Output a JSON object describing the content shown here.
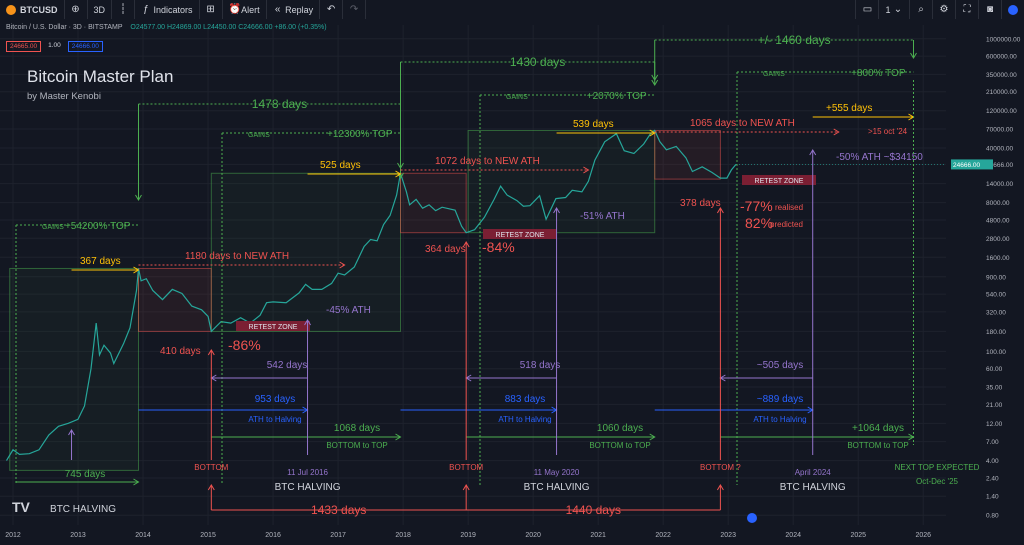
{
  "toolbar": {
    "symbol": "BTCUSD",
    "add_icon": "plus-circle-icon",
    "interval": "3D",
    "indicators_label": "Indicators",
    "alert_label": "Alert",
    "replay_label": "Replay",
    "layout_count": "1"
  },
  "legend": {
    "name": "Bitcoin / U.S. Dollar · 3D · BITSTAMP",
    "ohlc": "O24577.00 H24869.00 L24450.00 C24666.00 +86.00 (+0.35%)",
    "bid": "24665.00",
    "spread": "1.00",
    "ask": "24666.00"
  },
  "overlay": {
    "title": "Bitcoin Master Plan",
    "subtitle": "by Master Kenobi"
  },
  "colors": {
    "background": "#131722",
    "green": "#4caf50",
    "red": "#ef5350",
    "purple": "#9575cd",
    "blue": "#2962ff",
    "yellow": "#ffc107",
    "label_bg": "#7b1f33"
  },
  "chart_data": {
    "type": "line",
    "symbol": "BTCUSD",
    "scale": "log",
    "x_ticks": [
      "2012",
      "2013",
      "2014",
      "2015",
      "2016",
      "2017",
      "2018",
      "2019",
      "2020",
      "2021",
      "2022",
      "2023",
      "2024",
      "2025",
      "2026"
    ],
    "y_ticks": [
      "1000000.00",
      "600000.00",
      "350000.00",
      "210000.00",
      "120000.00",
      "70000.00",
      "40000.00",
      "24666.00",
      "14000.00",
      "8000.00",
      "4800.00",
      "2800.00",
      "1600.00",
      "900.00",
      "540.00",
      "320.00",
      "180.00",
      "100.00",
      "60.00",
      "35.00",
      "21.00",
      "12.00",
      "7.00",
      "4.00",
      "2.40",
      "1.40",
      "0.80"
    ],
    "price_label": "24666.00",
    "ylim": [
      0.6,
      1500000
    ],
    "xlim": [
      2011.8,
      2026.35
    ],
    "series": [
      {
        "values": [
          [
            2011.9,
            4
          ],
          [
            2012.0,
            5.5
          ],
          [
            2012.1,
            4.8
          ],
          [
            2012.25,
            4.9
          ],
          [
            2012.4,
            5.5
          ],
          [
            2012.55,
            8.5
          ],
          [
            2012.7,
            11
          ],
          [
            2012.85,
            12
          ],
          [
            2013.0,
            13.5
          ],
          [
            2013.1,
            20
          ],
          [
            2013.2,
            60
          ],
          [
            2013.28,
            230
          ],
          [
            2013.33,
            90
          ],
          [
            2013.4,
            120
          ],
          [
            2013.5,
            95
          ],
          [
            2013.55,
            70
          ],
          [
            2013.7,
            125
          ],
          [
            2013.8,
            200
          ],
          [
            2013.9,
            600
          ],
          [
            2013.93,
            1150
          ],
          [
            2013.97,
            800
          ],
          [
            2014.05,
            850
          ],
          [
            2014.15,
            600
          ],
          [
            2014.3,
            460
          ],
          [
            2014.45,
            620
          ],
          [
            2014.6,
            550
          ],
          [
            2014.75,
            380
          ],
          [
            2014.9,
            340
          ],
          [
            2015.0,
            280
          ],
          [
            2015.05,
            180
          ],
          [
            2015.2,
            240
          ],
          [
            2015.35,
            230
          ],
          [
            2015.5,
            270
          ],
          [
            2015.65,
            230
          ],
          [
            2015.8,
            290
          ],
          [
            2015.9,
            420
          ],
          [
            2016.0,
            430
          ],
          [
            2016.2,
            420
          ],
          [
            2016.4,
            560
          ],
          [
            2016.5,
            720
          ],
          [
            2016.6,
            620
          ],
          [
            2016.75,
            620
          ],
          [
            2016.9,
            740
          ],
          [
            2017.0,
            1000
          ],
          [
            2017.1,
            950
          ],
          [
            2017.25,
            1200
          ],
          [
            2017.4,
            2200
          ],
          [
            2017.5,
            2700
          ],
          [
            2017.6,
            2600
          ],
          [
            2017.7,
            4200
          ],
          [
            2017.8,
            5500
          ],
          [
            2017.9,
            10000
          ],
          [
            2017.96,
            19000
          ],
          [
            2018.05,
            11000
          ],
          [
            2018.1,
            7500
          ],
          [
            2018.2,
            8800
          ],
          [
            2018.3,
            6800
          ],
          [
            2018.4,
            7500
          ],
          [
            2018.5,
            6300
          ],
          [
            2018.6,
            7000
          ],
          [
            2018.8,
            6400
          ],
          [
            2018.9,
            4000
          ],
          [
            2018.97,
            3300
          ],
          [
            2019.1,
            3600
          ],
          [
            2019.25,
            5200
          ],
          [
            2019.4,
            8800
          ],
          [
            2019.5,
            13000
          ],
          [
            2019.6,
            10000
          ],
          [
            2019.75,
            8500
          ],
          [
            2019.85,
            7200
          ],
          [
            2019.95,
            7300
          ],
          [
            2020.1,
            9800
          ],
          [
            2020.2,
            4900
          ],
          [
            2020.35,
            9000
          ],
          [
            2020.5,
            9300
          ],
          [
            2020.6,
            11500
          ],
          [
            2020.75,
            11000
          ],
          [
            2020.85,
            15000
          ],
          [
            2020.95,
            28000
          ],
          [
            2021.1,
            48000
          ],
          [
            2021.28,
            61000
          ],
          [
            2021.4,
            37000
          ],
          [
            2021.55,
            34000
          ],
          [
            2021.7,
            45000
          ],
          [
            2021.8,
            60000
          ],
          [
            2021.87,
            67000
          ],
          [
            2021.95,
            48000
          ],
          [
            2022.05,
            38000
          ],
          [
            2022.2,
            42000
          ],
          [
            2022.35,
            30000
          ],
          [
            2022.45,
            20000
          ],
          [
            2022.6,
            23000
          ],
          [
            2022.75,
            19500
          ],
          [
            2022.88,
            16500
          ],
          [
            2022.98,
            16500
          ],
          [
            2023.05,
            21000
          ],
          [
            2023.12,
            24666
          ]
        ]
      }
    ],
    "annotations": {
      "peak_gains": [
        {
          "label": "GAINS",
          "value": "+54200% TOP"
        },
        {
          "label": "GAINS",
          "value": "+12300% TOP"
        },
        {
          "label": "GAINS",
          "value": "+2070% TOP"
        },
        {
          "label": "GAINS",
          "value": "+800% TOP"
        }
      ],
      "cycle_lengths": [
        "1478 days",
        "1430 days",
        "+/- 1460 days"
      ],
      "to_top": [
        "367 days",
        "525 days",
        "539 days",
        "+555 days"
      ],
      "to_new_ath": [
        "1180 days to NEW ATH",
        "1072 days to NEW ATH",
        "1065 days to NEW ATH"
      ],
      "ath_target": ">15 oct '24",
      "to_bottom": [
        "410 days",
        "364 days",
        "378 days"
      ],
      "drawdowns": [
        "-86%",
        "-84%",
        "-77%",
        "82%"
      ],
      "drawdown_notes": [
        "realised",
        "predicted"
      ],
      "retest": "RETEST ZONE",
      "halving_drop": [
        "-45% ATH",
        "-51% ATH",
        "-50% ATH ~$34150"
      ],
      "bottom_to_halving": [
        "542 days",
        "518 days",
        "~505 days"
      ],
      "ath_to_halving_days": [
        "953 days",
        "883 days",
        "~889 days"
      ],
      "ath_to_halving": "ATH to Halving",
      "bottom_to_top_days": [
        "1068 days",
        "1060 days",
        "+1064 days"
      ],
      "bottom_to_top": "BOTTOM to TOP",
      "first_halving_days": "745 days",
      "bottom": "BOTTOM",
      "bottom_next": "BOTTOM ?",
      "halving": "BTC HALVING",
      "halving_dates": [
        "11 Jul 2016",
        "11 May 2020",
        "April 2024"
      ],
      "bottom_spans": [
        "1433 days",
        "1440 days"
      ],
      "next_top": [
        "NEXT TOP EXPECTED",
        "Oct-Dec '25"
      ]
    }
  }
}
